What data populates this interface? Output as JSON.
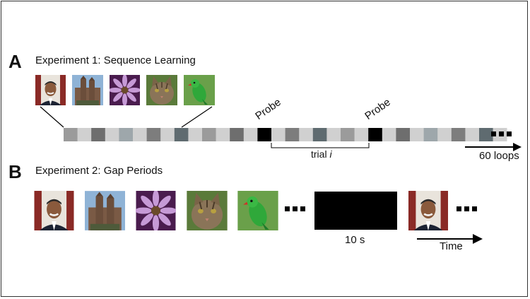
{
  "section_a": {
    "letter": "A",
    "title": "Experiment 1: Sequence Learning",
    "images": [
      "face-image",
      "cathedral-image",
      "flower-image",
      "cat-image",
      "parrot-image"
    ],
    "probe_label_1": "Probe",
    "probe_label_2": "Probe",
    "trial_label": "trial",
    "trial_var": "i",
    "loops_label": "60 loops",
    "sequence_colors": [
      "#9b9b9b",
      "#d0d0d0",
      "#6e6e6e",
      "#d0d0d0",
      "#9ea7ab",
      "#d0d0d0",
      "#7d7d7d",
      "#d0d0d0",
      "#5f6b70",
      "#d0d0d0",
      "#9b9b9b",
      "#d0d0d0",
      "#6e6e6e",
      "#d0d0d0",
      "#000000",
      "#d0d0d0",
      "#7d7d7d",
      "#d0d0d0",
      "#5f6b70",
      "#d0d0d0",
      "#9b9b9b",
      "#d0d0d0",
      "#000000",
      "#d0d0d0",
      "#6e6e6e",
      "#d0d0d0",
      "#9ea7ab",
      "#d0d0d0",
      "#7d7d7d",
      "#d0d0d0",
      "#5f6b70",
      "#d0d0d0"
    ]
  },
  "section_b": {
    "letter": "B",
    "title": "Experiment 2: Gap Periods",
    "gap_label": "10 s",
    "time_label": "Time"
  }
}
